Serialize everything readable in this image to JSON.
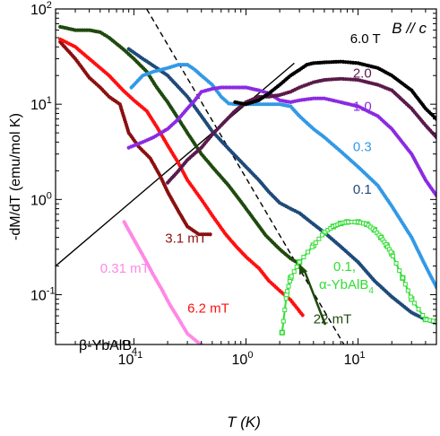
{
  "chart_data": {
    "type": "scatter",
    "title": "",
    "xlabel": "T (K)",
    "ylabel": "-dM/dT (emu/mol K)",
    "x_scale": "log",
    "y_scale": "log",
    "xlim": [
      0.02,
      50
    ],
    "ylim": [
      0.03,
      100
    ],
    "x_ticks": [
      {
        "value": 0.1,
        "label": "10",
        "exp": "-1"
      },
      {
        "value": 1,
        "label": "10",
        "exp": "0"
      },
      {
        "value": 10,
        "label": "10",
        "exp": "1"
      }
    ],
    "y_ticks": [
      {
        "value": 0.1,
        "label": "10",
        "exp": "-1"
      },
      {
        "value": 1,
        "label": "10",
        "exp": "0"
      },
      {
        "value": 10,
        "label": "10",
        "exp": "1"
      },
      {
        "value": 100,
        "label": "10",
        "exp": "2"
      }
    ],
    "grid": false,
    "legend": "none (series labeled inline)",
    "annotations": {
      "field_direction": "B // c",
      "material": "β-YbAlB",
      "material_sub": "4",
      "alpha_label_line1": "0.1,",
      "alpha_label_line2": "α-YbAlB",
      "alpha_label_sub": "4"
    },
    "series": [
      {
        "name": "0.31 mT",
        "color": "#ff88e6",
        "style": "dots",
        "points": [
          [
            0.082,
            0.58
          ],
          [
            0.1,
            0.38
          ],
          [
            0.12,
            0.26
          ],
          [
            0.15,
            0.16
          ],
          [
            0.18,
            0.11
          ],
          [
            0.21,
            0.078
          ],
          [
            0.25,
            0.056
          ],
          [
            0.3,
            0.039
          ],
          [
            0.38,
            0.031
          ],
          [
            0.48,
            0.026
          ]
        ]
      },
      {
        "name": "3.1 mT",
        "color": "#8b1010",
        "style": "dots",
        "points": [
          [
            0.022,
            45
          ],
          [
            0.03,
            30
          ],
          [
            0.04,
            19
          ],
          [
            0.05,
            15
          ],
          [
            0.06,
            12
          ],
          [
            0.075,
            10
          ],
          [
            0.09,
            5.0
          ],
          [
            0.11,
            3.6
          ],
          [
            0.14,
            2.7
          ],
          [
            0.17,
            1.8
          ],
          [
            0.2,
            1.2
          ],
          [
            0.25,
            0.75
          ],
          [
            0.3,
            0.52
          ],
          [
            0.38,
            0.43
          ],
          [
            0.48,
            0.43
          ]
        ]
      },
      {
        "name": "6.2 mT",
        "color": "#ff1010",
        "style": "dots",
        "points": [
          [
            0.022,
            48
          ],
          [
            0.03,
            40
          ],
          [
            0.04,
            30
          ],
          [
            0.06,
            20
          ],
          [
            0.08,
            14
          ],
          [
            0.1,
            11
          ],
          [
            0.13,
            8.5
          ],
          [
            0.16,
            5.8
          ],
          [
            0.2,
            3.7
          ],
          [
            0.25,
            2.4
          ],
          [
            0.3,
            1.6
          ],
          [
            0.4,
            1.0
          ],
          [
            0.5,
            0.68
          ],
          [
            0.65,
            0.44
          ],
          [
            0.8,
            0.33
          ],
          [
            1.0,
            0.25
          ],
          [
            1.3,
            0.19
          ],
          [
            1.6,
            0.14
          ],
          [
            2.0,
            0.11
          ],
          [
            2.5,
            0.088
          ],
          [
            3.2,
            0.061
          ]
        ]
      },
      {
        "name": "22 mT",
        "color": "#1f4a0e",
        "style": "dots",
        "points": [
          [
            0.022,
            65
          ],
          [
            0.03,
            60
          ],
          [
            0.04,
            60
          ],
          [
            0.05,
            57
          ],
          [
            0.06,
            50
          ],
          [
            0.08,
            38
          ],
          [
            0.1,
            30
          ],
          [
            0.13,
            22
          ],
          [
            0.16,
            15
          ],
          [
            0.2,
            10.5
          ],
          [
            0.25,
            7.0
          ],
          [
            0.3,
            5.0
          ],
          [
            0.4,
            3.0
          ],
          [
            0.5,
            2.2
          ],
          [
            0.7,
            1.4
          ],
          [
            0.9,
            0.95
          ],
          [
            1.2,
            0.6
          ],
          [
            1.5,
            0.42
          ],
          [
            2.0,
            0.3
          ],
          [
            2.5,
            0.24
          ],
          [
            3.0,
            0.21
          ]
        ]
      },
      {
        "name": "0.1",
        "color": "#1f4a7a",
        "style": "dots",
        "points": [
          [
            0.09,
            38
          ],
          [
            0.12,
            30
          ],
          [
            0.16,
            24
          ],
          [
            0.2,
            20
          ],
          [
            0.3,
            12
          ],
          [
            0.4,
            7.5
          ],
          [
            0.5,
            5.2
          ],
          [
            0.7,
            3.4
          ],
          [
            1.0,
            2.2
          ],
          [
            1.3,
            1.6
          ],
          [
            1.6,
            1.2
          ],
          [
            2.0,
            0.92
          ],
          [
            2.5,
            0.8
          ],
          [
            3.0,
            0.72
          ],
          [
            4.0,
            0.55
          ],
          [
            5.0,
            0.45
          ],
          [
            7.0,
            0.32
          ],
          [
            10.0,
            0.22
          ],
          [
            14.0,
            0.14
          ],
          [
            20.0,
            0.095
          ],
          [
            30.0,
            0.065
          ],
          [
            40.0,
            0.055
          ],
          [
            50.0,
            0.05
          ]
        ]
      },
      {
        "name": "0.3",
        "color": "#3399e6",
        "style": "dots",
        "points": [
          [
            0.095,
            15
          ],
          [
            0.12,
            20
          ],
          [
            0.15,
            22
          ],
          [
            0.2,
            24
          ],
          [
            0.25,
            26
          ],
          [
            0.3,
            26
          ],
          [
            0.35,
            23
          ],
          [
            0.4,
            20
          ],
          [
            0.5,
            16
          ],
          [
            0.6,
            12
          ],
          [
            0.7,
            10.2
          ],
          [
            0.8,
            10
          ],
          [
            1.0,
            10
          ],
          [
            1.5,
            10
          ],
          [
            2.0,
            10
          ],
          [
            2.5,
            9.5
          ],
          [
            3.0,
            7.5
          ],
          [
            4.0,
            5.5
          ],
          [
            5.0,
            4.5
          ],
          [
            7.0,
            3.2
          ],
          [
            10.0,
            2.2
          ],
          [
            15.0,
            1.4
          ],
          [
            20.0,
            0.85
          ],
          [
            30.0,
            0.4
          ],
          [
            40.0,
            0.2
          ],
          [
            50.0,
            0.12
          ]
        ]
      },
      {
        "name": "1.0",
        "color": "#8a2be2",
        "style": "dots",
        "points": [
          [
            0.09,
            3.5
          ],
          [
            0.12,
            4.0
          ],
          [
            0.15,
            4.5
          ],
          [
            0.2,
            5.5
          ],
          [
            0.25,
            7.0
          ],
          [
            0.3,
            9.0
          ],
          [
            0.35,
            11
          ],
          [
            0.4,
            13.5
          ],
          [
            0.5,
            14.5
          ],
          [
            0.6,
            15
          ],
          [
            0.8,
            15
          ],
          [
            1.0,
            15
          ],
          [
            1.3,
            14
          ],
          [
            1.6,
            13
          ],
          [
            2.0,
            11
          ],
          [
            2.5,
            10.5
          ],
          [
            3.0,
            11
          ],
          [
            4.0,
            11.5
          ],
          [
            5.0,
            11.5
          ],
          [
            7.0,
            10.5
          ],
          [
            10.0,
            9.5
          ],
          [
            15.0,
            7.5
          ],
          [
            20.0,
            5.5
          ],
          [
            30.0,
            3.0
          ],
          [
            40.0,
            1.6
          ],
          [
            50.0,
            1.1
          ]
        ]
      },
      {
        "name": "2.0",
        "color": "#5a1a4a",
        "style": "dots",
        "points": [
          [
            0.2,
            1.5
          ],
          [
            0.25,
            2.0
          ],
          [
            0.3,
            2.6
          ],
          [
            0.4,
            3.5
          ],
          [
            0.5,
            4.8
          ],
          [
            0.6,
            6.0
          ],
          [
            0.8,
            8.5
          ],
          [
            1.0,
            10.5
          ],
          [
            1.3,
            12
          ],
          [
            1.6,
            12
          ],
          [
            2.0,
            12.5
          ],
          [
            2.5,
            13.5
          ],
          [
            3.0,
            15
          ],
          [
            4.0,
            17
          ],
          [
            5.0,
            18
          ],
          [
            7.0,
            18.5
          ],
          [
            10.0,
            18
          ],
          [
            15.0,
            16
          ],
          [
            20.0,
            14
          ],
          [
            30.0,
            9.0
          ],
          [
            40.0,
            6.0
          ],
          [
            50.0,
            4.5
          ]
        ]
      },
      {
        "name": "6.0 T",
        "color": "#000000",
        "style": "dots",
        "points": [
          [
            0.8,
            10.5
          ],
          [
            1.0,
            10
          ],
          [
            1.3,
            11
          ],
          [
            1.6,
            13
          ],
          [
            2.0,
            16
          ],
          [
            2.5,
            20
          ],
          [
            3.0,
            23
          ],
          [
            3.5,
            26
          ],
          [
            4.0,
            27
          ],
          [
            5.0,
            27.5
          ],
          [
            7.0,
            28
          ],
          [
            10.0,
            27
          ],
          [
            15.0,
            24
          ],
          [
            20.0,
            20
          ],
          [
            30.0,
            14
          ],
          [
            40.0,
            9.0
          ],
          [
            50.0,
            7.0
          ]
        ]
      },
      {
        "name": "α-YbAlB4 0.1",
        "color": "#33dd33",
        "style": "line-squares",
        "points": [
          [
            2.1,
            0.04
          ],
          [
            2.3,
            0.1
          ],
          [
            2.5,
            0.15
          ],
          [
            3.0,
            0.22
          ],
          [
            4.0,
            0.33
          ],
          [
            5.0,
            0.45
          ],
          [
            6.0,
            0.52
          ],
          [
            7.0,
            0.56
          ],
          [
            8.0,
            0.58
          ],
          [
            10.0,
            0.58
          ],
          [
            12.0,
            0.55
          ],
          [
            14.0,
            0.48
          ],
          [
            16.0,
            0.4
          ],
          [
            18.0,
            0.33
          ],
          [
            20.0,
            0.27
          ],
          [
            25.0,
            0.15
          ],
          [
            30.0,
            0.09
          ],
          [
            40.0,
            0.055
          ],
          [
            50.0,
            0.052
          ]
        ]
      }
    ],
    "reference_lines": [
      {
        "kind": "solid",
        "slope": 1,
        "color": "#000000",
        "points": [
          [
            0.02,
            0.2
          ],
          [
            2.7,
            27
          ]
        ]
      },
      {
        "kind": "dashed",
        "slope": -2,
        "color": "#000000",
        "points": [
          [
            0.13,
            100
          ],
          [
            21,
            0.0038
          ]
        ]
      }
    ],
    "labels": [
      {
        "text": "6.0 T",
        "color": "#000000",
        "anchor": [
          8.5,
          44
        ]
      },
      {
        "text": "2.0",
        "color": "#5a1a4a",
        "anchor": [
          9.0,
          19
        ]
      },
      {
        "text": "1.0",
        "color": "#8a2be2",
        "anchor": [
          9.0,
          8.5
        ]
      },
      {
        "text": "0.3",
        "color": "#3399e6",
        "anchor": [
          9.0,
          3.2
        ]
      },
      {
        "text": "0.1",
        "color": "#1f4a7a",
        "anchor": [
          9.0,
          1.15
        ]
      },
      {
        "text": "3.1 mT",
        "color": "#8b1010",
        "anchor": [
          0.19,
          0.35
        ]
      },
      {
        "text": "0.31 mT",
        "color": "#ff88e6",
        "anchor": [
          0.05,
          0.17
        ]
      },
      {
        "text": "6.2 mT",
        "color": "#ff1010",
        "anchor": [
          0.3,
          0.065
        ]
      },
      {
        "text": "22 mT",
        "color": "#1f4a0e",
        "anchor": [
          4.0,
          0.05
        ]
      }
    ]
  }
}
